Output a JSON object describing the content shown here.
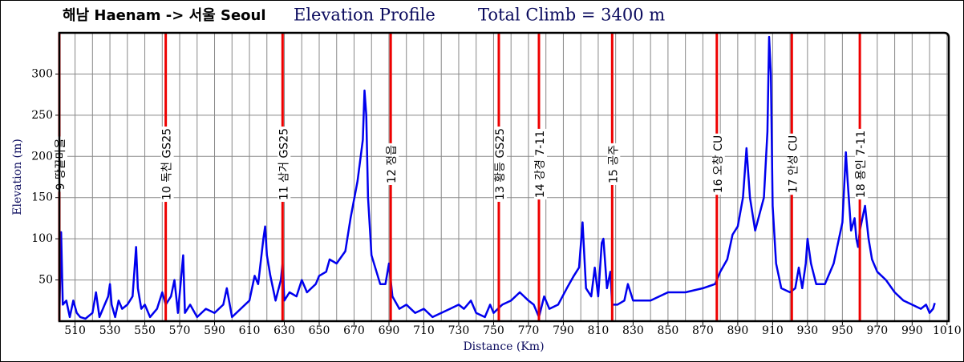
{
  "chart_data": {
    "type": "line",
    "title": "해남 Haenam -> 서울 Seoul",
    "subtitle": "Elevation Profile",
    "annotation": "Total Climb = 3400 m",
    "xlabel": "Distance (Km)",
    "ylabel": "Elevation (m)",
    "xlim": [
      501,
      1011
    ],
    "ylim": [
      0,
      350
    ],
    "xticks": [
      510,
      530,
      550,
      570,
      590,
      610,
      630,
      650,
      670,
      690,
      710,
      730,
      750,
      770,
      790,
      810,
      830,
      850,
      870,
      890,
      910,
      930,
      950,
      970,
      990,
      1010
    ],
    "xminorticks": [
      520,
      540,
      560,
      580,
      600,
      620,
      640,
      660,
      680,
      700,
      720,
      740,
      760,
      780,
      800,
      820,
      840,
      860,
      880,
      900,
      920,
      940,
      960,
      980,
      1000
    ],
    "yticks": [
      50,
      100,
      150,
      200,
      250,
      300
    ],
    "grid": true,
    "series": [
      {
        "name": "Elevation",
        "color": "#0000ee",
        "x": [
          501,
          502,
          503,
          505,
          507,
          509,
          511,
          513,
          516,
          520,
          522,
          524,
          527,
          529,
          530,
          531,
          533,
          535,
          537,
          540,
          543,
          545,
          546,
          548,
          550,
          553,
          557,
          560,
          562,
          565,
          567,
          569,
          572,
          573,
          576,
          580,
          585,
          590,
          595,
          597,
          600,
          605,
          610,
          613,
          615,
          618,
          619,
          620,
          622,
          625,
          628,
          629,
          630,
          633,
          637,
          640,
          643,
          648,
          650,
          654,
          656,
          660,
          665,
          668,
          672,
          675,
          676,
          677,
          678,
          680,
          685,
          688,
          690,
          692,
          696,
          700,
          705,
          710,
          715,
          720,
          725,
          730,
          733,
          737,
          740,
          745,
          748,
          750,
          755,
          760,
          765,
          770,
          773,
          776,
          779,
          782,
          787,
          792,
          796,
          799,
          801,
          803,
          806,
          808,
          810,
          812,
          813,
          815,
          817,
          818,
          821,
          825,
          827,
          830,
          840,
          850,
          860,
          870,
          877,
          880,
          884,
          887,
          890,
          893,
          895,
          897,
          900,
          905,
          907,
          908,
          909,
          910,
          912,
          915,
          920,
          923,
          925,
          927,
          929,
          930,
          932,
          935,
          940,
          945,
          950,
          952,
          953,
          955,
          957,
          958,
          959,
          960,
          962,
          963,
          965,
          967,
          970,
          975,
          980,
          985,
          990,
          995,
          998,
          1000,
          1002,
          1003
        ],
        "values": [
          5,
          108,
          20,
          25,
          5,
          25,
          10,
          5,
          3,
          10,
          35,
          5,
          20,
          30,
          45,
          20,
          5,
          25,
          15,
          20,
          30,
          90,
          40,
          15,
          20,
          5,
          15,
          35,
          20,
          30,
          50,
          10,
          80,
          10,
          20,
          5,
          15,
          10,
          20,
          40,
          5,
          15,
          25,
          55,
          45,
          100,
          115,
          80,
          55,
          25,
          50,
          70,
          25,
          35,
          30,
          50,
          35,
          45,
          55,
          60,
          75,
          70,
          85,
          125,
          170,
          220,
          280,
          250,
          150,
          80,
          45,
          45,
          70,
          30,
          15,
          20,
          10,
          15,
          5,
          10,
          15,
          20,
          15,
          25,
          10,
          5,
          20,
          10,
          20,
          25,
          35,
          25,
          20,
          5,
          30,
          15,
          20,
          40,
          55,
          65,
          120,
          40,
          30,
          65,
          30,
          95,
          100,
          40,
          60,
          20,
          20,
          25,
          45,
          25,
          25,
          35,
          35,
          40,
          45,
          60,
          75,
          105,
          115,
          150,
          210,
          150,
          110,
          150,
          230,
          345,
          300,
          140,
          70,
          40,
          35,
          40,
          65,
          40,
          70,
          100,
          70,
          45,
          45,
          70,
          120,
          205,
          170,
          110,
          125,
          100,
          90,
          110,
          130,
          140,
          100,
          75,
          60,
          50,
          35,
          25,
          20,
          15,
          20,
          10,
          15,
          22
        ]
      }
    ],
    "markers": [
      {
        "x": 501,
        "label": "9 땅끝마을"
      },
      {
        "x": 562,
        "label": "10 독천 GS25"
      },
      {
        "x": 629,
        "label": "11 삼거 GS25"
      },
      {
        "x": 691,
        "label": "12 정읍"
      },
      {
        "x": 753,
        "label": "13 황등 GS25"
      },
      {
        "x": 776,
        "label": "14 강경 7-11"
      },
      {
        "x": 818,
        "label": "15 공주"
      },
      {
        "x": 878,
        "label": "16 오창 CU"
      },
      {
        "x": 921,
        "label": "17 안성 CU"
      },
      {
        "x": 960,
        "label": "18 용인 7-11"
      }
    ],
    "marker_color": "#ee0000"
  }
}
